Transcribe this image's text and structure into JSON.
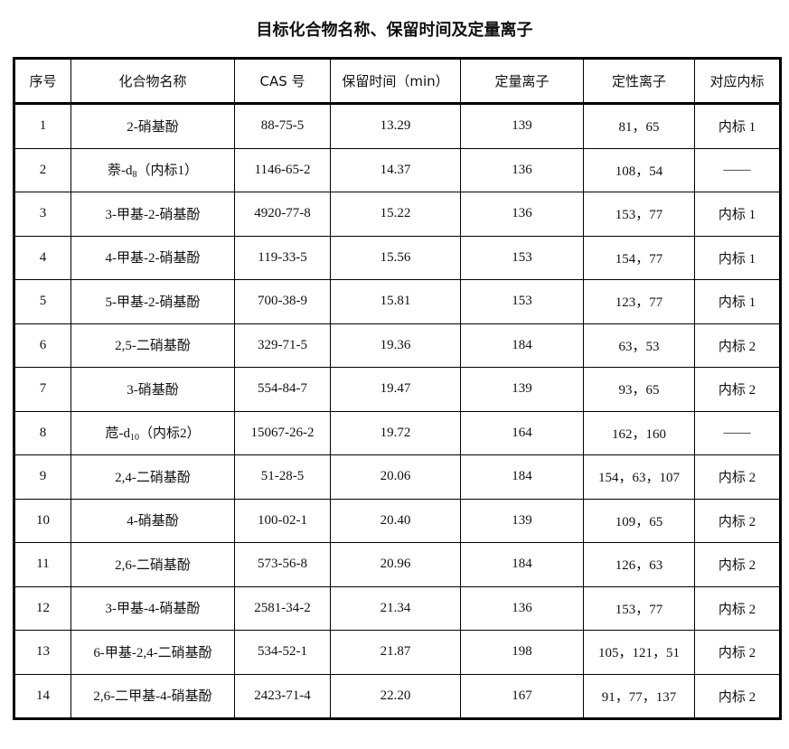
{
  "title": "目标化合物名称、保留时间及定量离子",
  "table": {
    "headers": [
      "序号",
      "化合物名称",
      "CAS 号",
      "保留时间（min）",
      "定量离子",
      "定性离子",
      "对应内标"
    ],
    "rows": [
      {
        "no": "1",
        "name": "2-硝基酚",
        "sub": "",
        "suffix": "",
        "cas": "88-75-5",
        "rt": "13.29",
        "quant": "139",
        "qual": "81，65",
        "is": "内标 1"
      },
      {
        "no": "2",
        "name": "萘-d",
        "sub": "8",
        "suffix": "（内标1）",
        "cas": "1146-65-2",
        "rt": "14.37",
        "quant": "136",
        "qual": "108，54",
        "is": "——"
      },
      {
        "no": "3",
        "name": "3-甲基-2-硝基酚",
        "sub": "",
        "suffix": "",
        "cas": "4920-77-8",
        "rt": "15.22",
        "quant": "136",
        "qual": "153，77",
        "is": "内标 1"
      },
      {
        "no": "4",
        "name": "4-甲基-2-硝基酚",
        "sub": "",
        "suffix": "",
        "cas": "119-33-5",
        "rt": "15.56",
        "quant": "153",
        "qual": "154，77",
        "is": "内标 1"
      },
      {
        "no": "5",
        "name": "5-甲基-2-硝基酚",
        "sub": "",
        "suffix": "",
        "cas": "700-38-9",
        "rt": "15.81",
        "quant": "153",
        "qual": "123，77",
        "is": "内标 1"
      },
      {
        "no": "6",
        "name": "2,5-二硝基酚",
        "sub": "",
        "suffix": "",
        "cas": "329-71-5",
        "rt": "19.36",
        "quant": "184",
        "qual": "63，53",
        "is": "内标 2"
      },
      {
        "no": "7",
        "name": "3-硝基酚",
        "sub": "",
        "suffix": "",
        "cas": "554-84-7",
        "rt": "19.47",
        "quant": "139",
        "qual": "93，65",
        "is": "内标 2"
      },
      {
        "no": "8",
        "name": "苊-d",
        "sub": "10",
        "suffix": "（内标2）",
        "cas": "15067-26-2",
        "rt": "19.72",
        "quant": "164",
        "qual": "162，160",
        "is": "——"
      },
      {
        "no": "9",
        "name": "2,4-二硝基酚",
        "sub": "",
        "suffix": "",
        "cas": "51-28-5",
        "rt": "20.06",
        "quant": "184",
        "qual": "154，63，107",
        "is": "内标 2"
      },
      {
        "no": "10",
        "name": "4-硝基酚",
        "sub": "",
        "suffix": "",
        "cas": "100-02-1",
        "rt": "20.40",
        "quant": "139",
        "qual": "109，65",
        "is": "内标 2"
      },
      {
        "no": "11",
        "name": "2,6-二硝基酚",
        "sub": "",
        "suffix": "",
        "cas": "573-56-8",
        "rt": "20.96",
        "quant": "184",
        "qual": "126，63",
        "is": "内标 2"
      },
      {
        "no": "12",
        "name": "3-甲基-4-硝基酚",
        "sub": "",
        "suffix": "",
        "cas": "2581-34-2",
        "rt": "21.34",
        "quant": "136",
        "qual": "153，77",
        "is": "内标 2"
      },
      {
        "no": "13",
        "name": "6-甲基-2,4-二硝基酚",
        "sub": "",
        "suffix": "",
        "cas": "534-52-1",
        "rt": "21.87",
        "quant": "198",
        "qual": "105，121，51",
        "is": "内标 2"
      },
      {
        "no": "14",
        "name": "2,6-二甲基-4-硝基酚",
        "sub": "",
        "suffix": "",
        "cas": "2423-71-4",
        "rt": "22.20",
        "quant": "167",
        "qual": "91，77，137",
        "is": "内标 2"
      }
    ]
  }
}
